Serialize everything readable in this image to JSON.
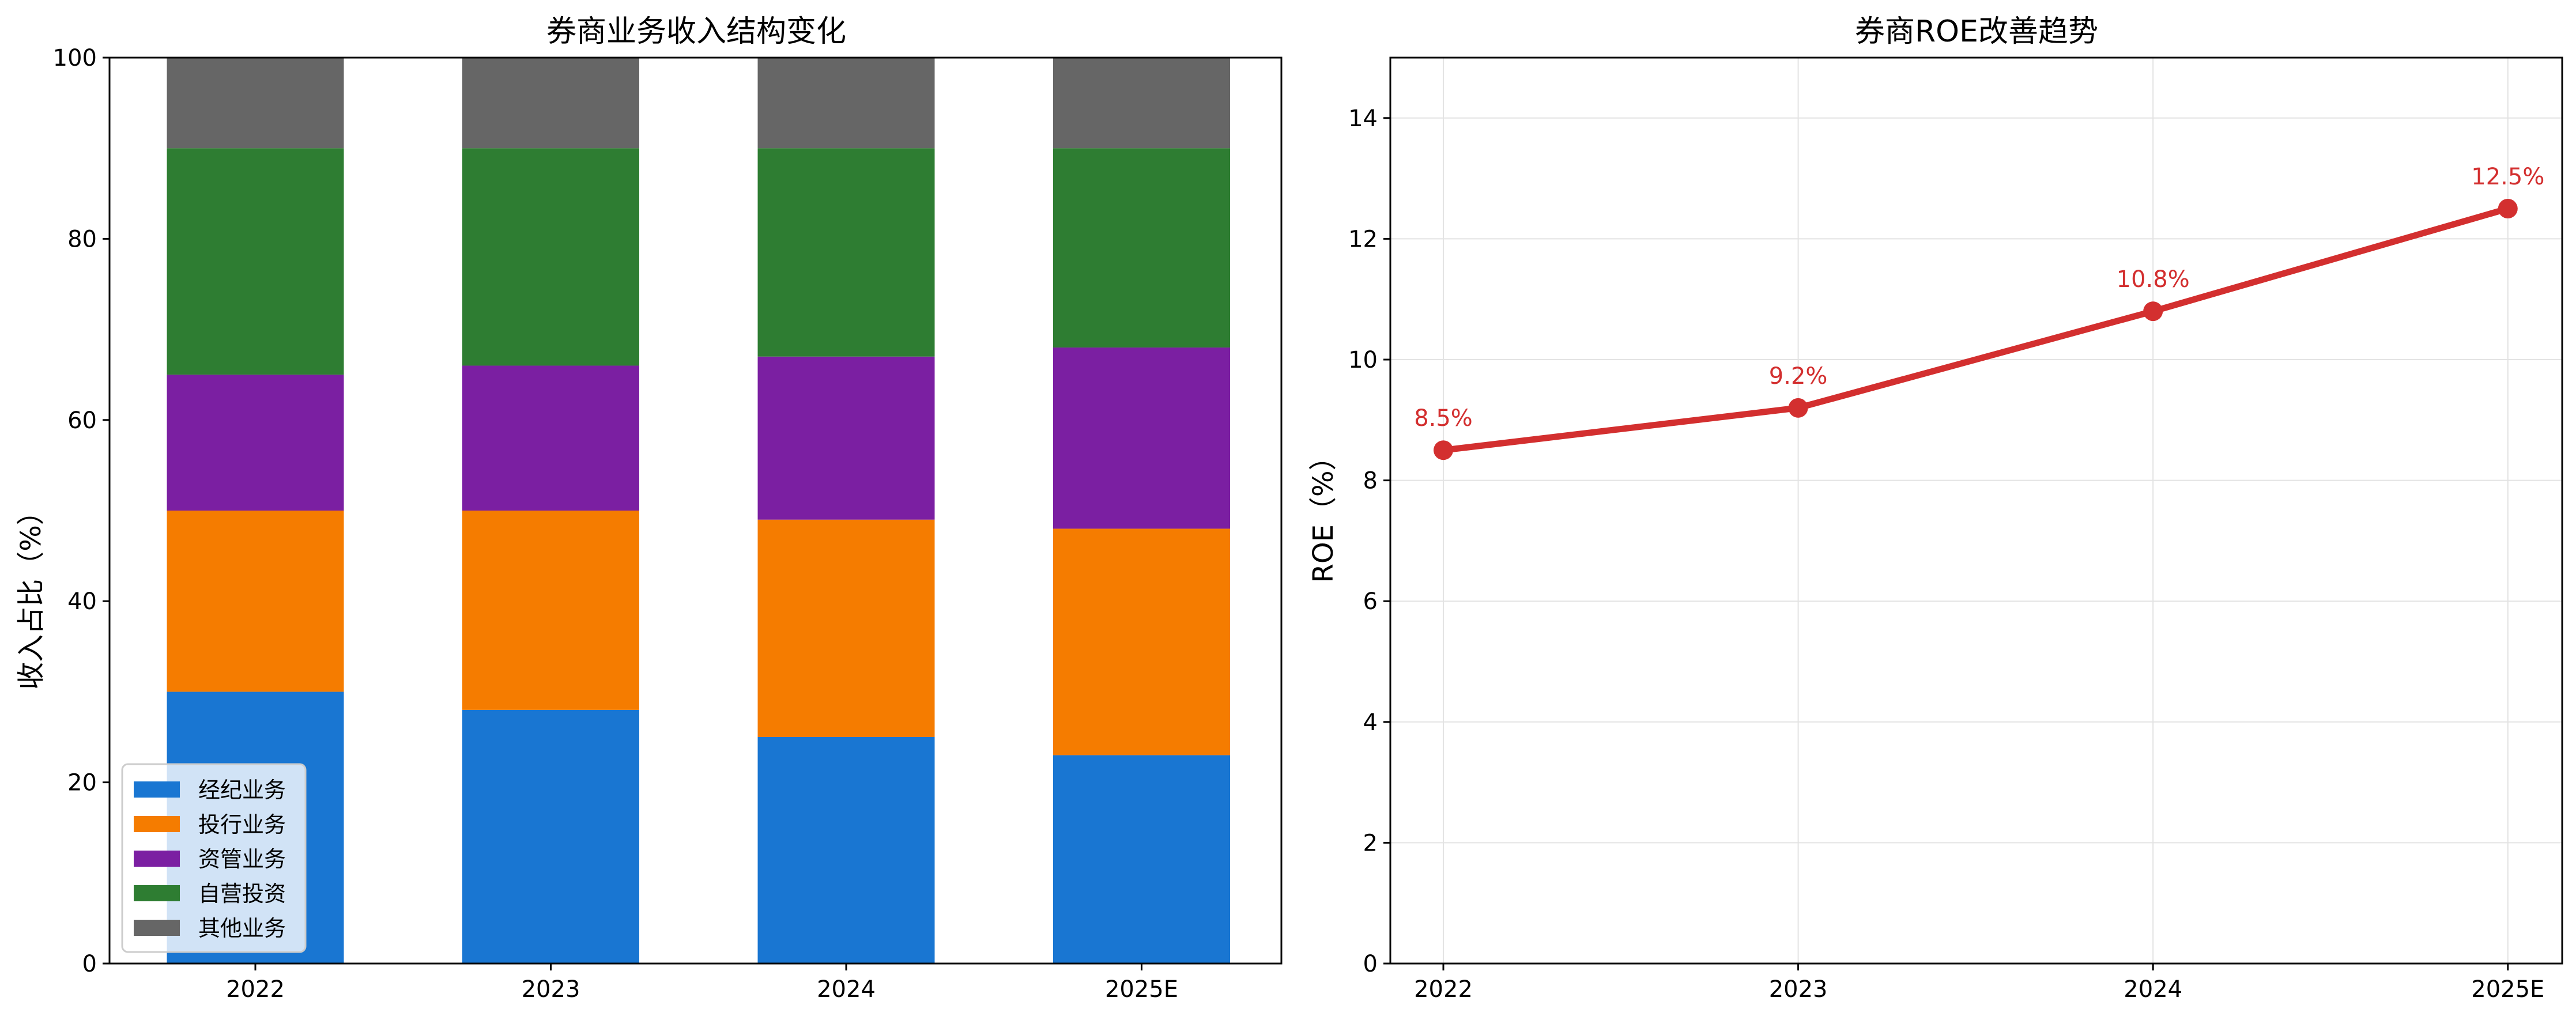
{
  "chart_data": [
    {
      "type": "bar",
      "stacked": true,
      "title": "券商业务收入结构变化",
      "xlabel": "",
      "ylabel": "收入占比（%）",
      "categories": [
        "2022",
        "2023",
        "2024",
        "2025E"
      ],
      "ylim": [
        0,
        100
      ],
      "yticks": [
        0,
        20,
        40,
        60,
        80,
        100
      ],
      "grid": false,
      "legend_position": "bottom-left",
      "series": [
        {
          "name": "经纪业务",
          "color": "#1976D2",
          "values": [
            30,
            28,
            25,
            23
          ]
        },
        {
          "name": "投行业务",
          "color": "#F57C00",
          "values": [
            20,
            22,
            24,
            25
          ]
        },
        {
          "name": "资管业务",
          "color": "#7B1FA2",
          "values": [
            15,
            16,
            18,
            20
          ]
        },
        {
          "name": "自营投资",
          "color": "#2E7D32",
          "values": [
            25,
            24,
            23,
            22
          ]
        },
        {
          "name": "其他业务",
          "color": "#666666",
          "values": [
            10,
            10,
            10,
            10
          ]
        }
      ]
    },
    {
      "type": "line",
      "title": "券商ROE改善趋势",
      "xlabel": "",
      "ylabel": "ROE（%）",
      "categories": [
        "2022",
        "2023",
        "2024",
        "2025E"
      ],
      "ylim": [
        0,
        15
      ],
      "yticks": [
        0,
        2,
        4,
        6,
        8,
        10,
        12,
        14
      ],
      "grid": true,
      "legend_position": "none",
      "series": [
        {
          "color": "#D32F2F",
          "values": [
            8.5,
            9.2,
            10.8,
            12.5
          ],
          "labels": [
            "8.5%",
            "9.2%",
            "10.8%",
            "12.5%"
          ]
        }
      ]
    }
  ]
}
